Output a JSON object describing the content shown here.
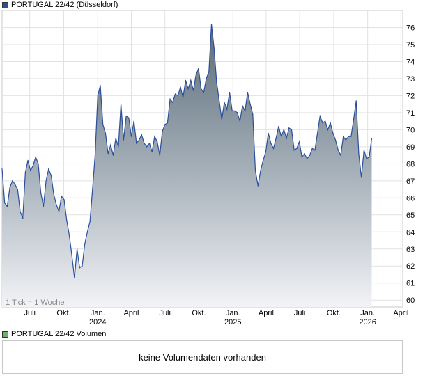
{
  "legend": {
    "price_label": "PORTUGAL 22/42 (Düsseldorf)",
    "price_color": "#2a4f9c",
    "volume_label": "PORTUGAL 22/42 Volumen",
    "volume_color": "#6ab46a"
  },
  "volume": {
    "message": "keine Volumendaten vorhanden"
  },
  "chart_data": {
    "type": "area",
    "tick_note": "1 Tick = 1 Woche",
    "ylim": [
      59.6,
      77.0
    ],
    "yticks": [
      60,
      61,
      62,
      63,
      64,
      65,
      66,
      67,
      68,
      69,
      70,
      71,
      72,
      73,
      74,
      75,
      76
    ],
    "xlim": [
      "2023-04-17",
      "2026-04-06"
    ],
    "xticks": [
      {
        "date": "2023-07-01",
        "label": "Juli",
        "sub": ""
      },
      {
        "date": "2023-10-01",
        "label": "Okt.",
        "sub": ""
      },
      {
        "date": "2024-01-01",
        "label": "Jan.",
        "sub": "2024"
      },
      {
        "date": "2024-04-01",
        "label": "April",
        "sub": ""
      },
      {
        "date": "2024-07-01",
        "label": "Juli",
        "sub": ""
      },
      {
        "date": "2024-10-01",
        "label": "Okt.",
        "sub": ""
      },
      {
        "date": "2025-01-01",
        "label": "Jan.",
        "sub": "2025"
      },
      {
        "date": "2025-04-01",
        "label": "April",
        "sub": ""
      },
      {
        "date": "2025-07-01",
        "label": "Juli",
        "sub": ""
      },
      {
        "date": "2025-10-01",
        "label": "Okt.",
        "sub": ""
      },
      {
        "date": "2026-01-01",
        "label": "Jan.",
        "sub": "2026"
      },
      {
        "date": "2026-04-01",
        "label": "April",
        "sub": ""
      }
    ],
    "series": [
      {
        "points": [
          [
            "2023-04-17",
            67.7
          ],
          [
            "2023-04-24",
            65.7
          ],
          [
            "2023-05-01",
            65.5
          ],
          [
            "2023-05-08",
            66.6
          ],
          [
            "2023-05-15",
            67.0
          ],
          [
            "2023-05-22",
            66.8
          ],
          [
            "2023-05-29",
            66.5
          ],
          [
            "2023-06-05",
            65.2
          ],
          [
            "2023-06-12",
            64.8
          ],
          [
            "2023-06-19",
            67.5
          ],
          [
            "2023-06-26",
            68.2
          ],
          [
            "2023-07-03",
            67.6
          ],
          [
            "2023-07-10",
            67.9
          ],
          [
            "2023-07-17",
            68.4
          ],
          [
            "2023-07-24",
            68.0
          ],
          [
            "2023-07-31",
            66.3
          ],
          [
            "2023-08-07",
            65.5
          ],
          [
            "2023-08-14",
            67.0
          ],
          [
            "2023-08-21",
            67.7
          ],
          [
            "2023-08-28",
            67.3
          ],
          [
            "2023-09-04",
            66.2
          ],
          [
            "2023-09-11",
            65.6
          ],
          [
            "2023-09-18",
            65.2
          ],
          [
            "2023-09-25",
            66.1
          ],
          [
            "2023-10-02",
            65.9
          ],
          [
            "2023-10-09",
            64.7
          ],
          [
            "2023-10-16",
            63.8
          ],
          [
            "2023-10-23",
            62.6
          ],
          [
            "2023-10-30",
            61.3
          ],
          [
            "2023-11-06",
            63.0
          ],
          [
            "2023-11-13",
            61.9
          ],
          [
            "2023-11-20",
            62.0
          ],
          [
            "2023-11-27",
            63.3
          ],
          [
            "2023-12-04",
            64.0
          ],
          [
            "2023-12-11",
            64.6
          ],
          [
            "2023-12-18",
            66.5
          ],
          [
            "2023-12-25",
            68.5
          ],
          [
            "2024-01-01",
            72.0
          ],
          [
            "2024-01-08",
            72.6
          ],
          [
            "2024-01-15",
            70.3
          ],
          [
            "2024-01-22",
            69.8
          ],
          [
            "2024-01-29",
            68.6
          ],
          [
            "2024-02-05",
            69.1
          ],
          [
            "2024-02-12",
            68.5
          ],
          [
            "2024-02-19",
            69.5
          ],
          [
            "2024-02-26",
            69.0
          ],
          [
            "2024-03-04",
            71.5
          ],
          [
            "2024-03-11",
            69.4
          ],
          [
            "2024-03-18",
            70.8
          ],
          [
            "2024-03-25",
            70.7
          ],
          [
            "2024-04-01",
            69.6
          ],
          [
            "2024-04-08",
            70.5
          ],
          [
            "2024-04-15",
            69.2
          ],
          [
            "2024-04-22",
            69.4
          ],
          [
            "2024-04-29",
            69.7
          ],
          [
            "2024-05-06",
            69.2
          ],
          [
            "2024-05-13",
            69.0
          ],
          [
            "2024-05-20",
            69.2
          ],
          [
            "2024-05-27",
            68.7
          ],
          [
            "2024-06-03",
            69.6
          ],
          [
            "2024-06-10",
            69.3
          ],
          [
            "2024-06-17",
            68.5
          ],
          [
            "2024-06-24",
            69.9
          ],
          [
            "2024-07-01",
            70.3
          ],
          [
            "2024-07-08",
            70.4
          ],
          [
            "2024-07-15",
            71.8
          ],
          [
            "2024-07-22",
            71.6
          ],
          [
            "2024-07-29",
            72.1
          ],
          [
            "2024-08-05",
            72.0
          ],
          [
            "2024-08-12",
            72.5
          ],
          [
            "2024-08-19",
            71.9
          ],
          [
            "2024-08-26",
            72.9
          ],
          [
            "2024-09-02",
            72.4
          ],
          [
            "2024-09-09",
            72.9
          ],
          [
            "2024-09-16",
            72.3
          ],
          [
            "2024-09-23",
            73.2
          ],
          [
            "2024-09-30",
            73.6
          ],
          [
            "2024-10-07",
            72.4
          ],
          [
            "2024-10-14",
            72.2
          ],
          [
            "2024-10-21",
            73.0
          ],
          [
            "2024-10-28",
            73.4
          ],
          [
            "2024-11-04",
            76.2
          ],
          [
            "2024-11-11",
            74.8
          ],
          [
            "2024-11-18",
            72.8
          ],
          [
            "2024-11-25",
            71.7
          ],
          [
            "2024-12-02",
            70.6
          ],
          [
            "2024-12-09",
            71.6
          ],
          [
            "2024-12-16",
            71.2
          ],
          [
            "2024-12-23",
            72.2
          ],
          [
            "2024-12-30",
            71.1
          ],
          [
            "2025-01-06",
            71.1
          ],
          [
            "2025-01-13",
            71.0
          ],
          [
            "2025-01-20",
            70.5
          ],
          [
            "2025-01-27",
            71.4
          ],
          [
            "2025-02-03",
            71.1
          ],
          [
            "2025-02-10",
            72.2
          ],
          [
            "2025-02-17",
            71.5
          ],
          [
            "2025-02-24",
            70.9
          ],
          [
            "2025-03-03",
            67.6
          ],
          [
            "2025-03-10",
            66.7
          ],
          [
            "2025-03-17",
            67.6
          ],
          [
            "2025-03-24",
            68.2
          ],
          [
            "2025-03-31",
            68.7
          ],
          [
            "2025-04-07",
            69.8
          ],
          [
            "2025-04-14",
            69.2
          ],
          [
            "2025-04-21",
            68.9
          ],
          [
            "2025-04-28",
            69.5
          ],
          [
            "2025-05-05",
            70.2
          ],
          [
            "2025-05-12",
            69.6
          ],
          [
            "2025-05-19",
            70.0
          ],
          [
            "2025-05-26",
            69.5
          ],
          [
            "2025-06-02",
            70.1
          ],
          [
            "2025-06-09",
            70.0
          ],
          [
            "2025-06-16",
            68.8
          ],
          [
            "2025-06-23",
            68.9
          ],
          [
            "2025-06-30",
            69.3
          ],
          [
            "2025-07-07",
            68.4
          ],
          [
            "2025-07-14",
            68.6
          ],
          [
            "2025-07-21",
            68.3
          ],
          [
            "2025-07-28",
            68.5
          ],
          [
            "2025-08-04",
            68.9
          ],
          [
            "2025-08-11",
            68.8
          ],
          [
            "2025-08-18",
            69.8
          ],
          [
            "2025-08-25",
            70.8
          ],
          [
            "2025-09-01",
            70.4
          ],
          [
            "2025-09-08",
            70.5
          ],
          [
            "2025-09-15",
            70.0
          ],
          [
            "2025-09-22",
            70.4
          ],
          [
            "2025-09-29",
            69.8
          ],
          [
            "2025-10-06",
            69.4
          ],
          [
            "2025-10-13",
            68.8
          ],
          [
            "2025-10-20",
            68.5
          ],
          [
            "2025-10-27",
            69.6
          ],
          [
            "2025-11-03",
            69.4
          ],
          [
            "2025-11-10",
            69.6
          ],
          [
            "2025-11-17",
            69.6
          ],
          [
            "2025-11-24",
            70.6
          ],
          [
            "2025-12-01",
            71.7
          ],
          [
            "2025-12-08",
            68.6
          ],
          [
            "2025-12-15",
            67.2
          ],
          [
            "2025-12-22",
            68.8
          ],
          [
            "2025-12-29",
            68.3
          ],
          [
            "2026-01-05",
            68.4
          ],
          [
            "2026-01-12",
            69.5
          ]
        ]
      }
    ]
  }
}
